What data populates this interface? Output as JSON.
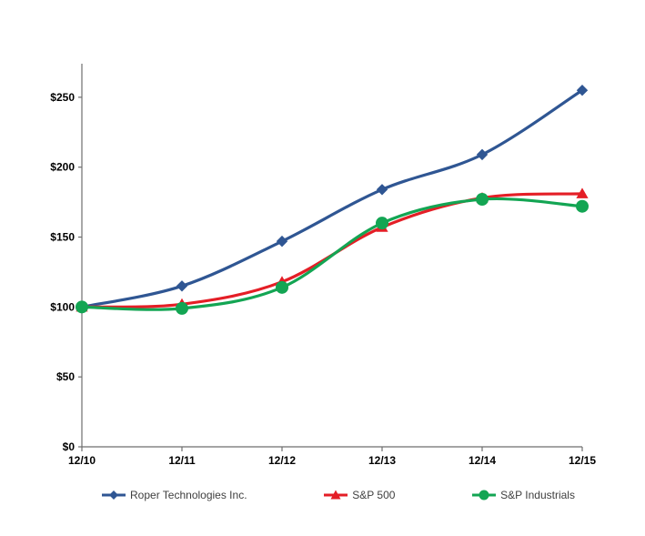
{
  "chart_data": {
    "type": "line",
    "title": "",
    "xlabel": "",
    "ylabel": "",
    "x_categories": [
      "12/10",
      "12/11",
      "12/12",
      "12/13",
      "12/14",
      "12/15"
    ],
    "series": [
      {
        "name": "Roper Technologies Inc.",
        "color": "#2F5693",
        "marker": "diamond",
        "values": [
          100,
          115,
          147,
          184,
          209,
          255
        ]
      },
      {
        "name": "S&P 500",
        "color": "#E41E26",
        "marker": "triangle",
        "values": [
          100,
          102,
          118,
          157,
          178,
          181
        ]
      },
      {
        "name": "S&P Industrials",
        "color": "#13A553",
        "marker": "circle",
        "values": [
          100,
          99,
          114,
          160,
          177,
          172
        ]
      }
    ],
    "y_ticks": [
      {
        "value": 0,
        "label": "$0"
      },
      {
        "value": 50,
        "label": "$50"
      },
      {
        "value": 100,
        "label": "$100"
      },
      {
        "value": 150,
        "label": "$150"
      },
      {
        "value": 200,
        "label": "$200"
      },
      {
        "value": 250,
        "label": "$250"
      }
    ],
    "ylim": [
      0,
      274
    ],
    "grid": false,
    "smooth_lines": true,
    "legend_position": "bottom",
    "axis_color": "#6E6E6E",
    "tick_label_color": "#000000"
  }
}
